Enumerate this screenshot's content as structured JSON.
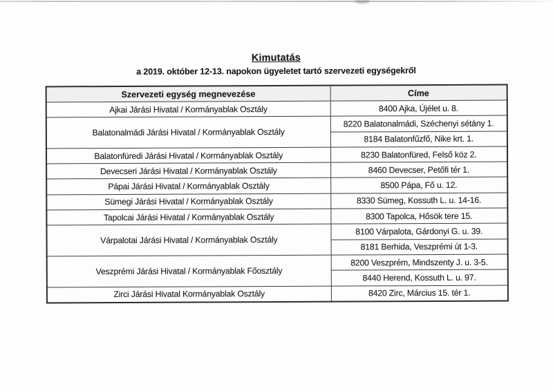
{
  "document": {
    "title": "Kimutatás",
    "subtitle": "a 2019. október 12-13. napokon ügyeletet tartó szervezeti egységekről"
  },
  "table": {
    "columns": [
      "Szervezeti egység megnevezése",
      "Címe"
    ],
    "rows": [
      {
        "unit": "Ajkai Járási Hivatal / Kormányablak Osztály",
        "addresses": [
          "8400 Ajka, Újélet u. 8."
        ]
      },
      {
        "unit": "Balatonalmádi Járási Hivatal / Kormányablak Osztály",
        "addresses": [
          "8220 Balatonalmádi, Széchenyi sétány 1.",
          "8184 Balatonfűzfő, Nike krt. 1."
        ]
      },
      {
        "unit": "Balatonfüredi Járási Hivatal / Kormányablak Osztály",
        "addresses": [
          "8230 Balatonfüred, Felső köz 2."
        ]
      },
      {
        "unit": "Devecseri Járási Hivatal / Kormányablak Osztály",
        "addresses": [
          "8460 Devecser, Petőfi tér 1."
        ]
      },
      {
        "unit": "Pápai Járási Hivatal / Kormányablak Osztály",
        "addresses": [
          "8500 Pápa, Fő u. 12."
        ]
      },
      {
        "unit": "Sümegi Járási Hivatal / Kormányablak Osztály",
        "addresses": [
          "8330 Sümeg, Kossuth L. u. 14-16."
        ]
      },
      {
        "unit": "Tapolcai Járási Hivatal / Kormányablak Osztály",
        "addresses": [
          "8300 Tapolca, Hősök tere 15."
        ]
      },
      {
        "unit": "Várpalotai Járási Hivatal / Kormányablak Osztály",
        "addresses": [
          "8100 Várpalota, Gárdonyi G. u. 39.",
          "8181 Berhida, Veszprémi út 1-3."
        ]
      },
      {
        "unit": "Veszprémi Járási Hivatal / Kormányablak Főosztály",
        "addresses": [
          "8200 Veszprém, Mindszenty J. u. 3-5.",
          "8440 Herend, Kossuth L. u. 97."
        ]
      },
      {
        "unit": "Zirci Járási Hivatal Kormányablak Osztály",
        "addresses": [
          "8420 Zirc, Március 15. tér 1."
        ]
      }
    ]
  },
  "colors": {
    "ink": "#1c1c1c",
    "table_border": "#2b2b2b",
    "header_bg": "#f0f0f0",
    "page_bg": "#fefefe",
    "scan_edge": "#bdbdbd"
  }
}
